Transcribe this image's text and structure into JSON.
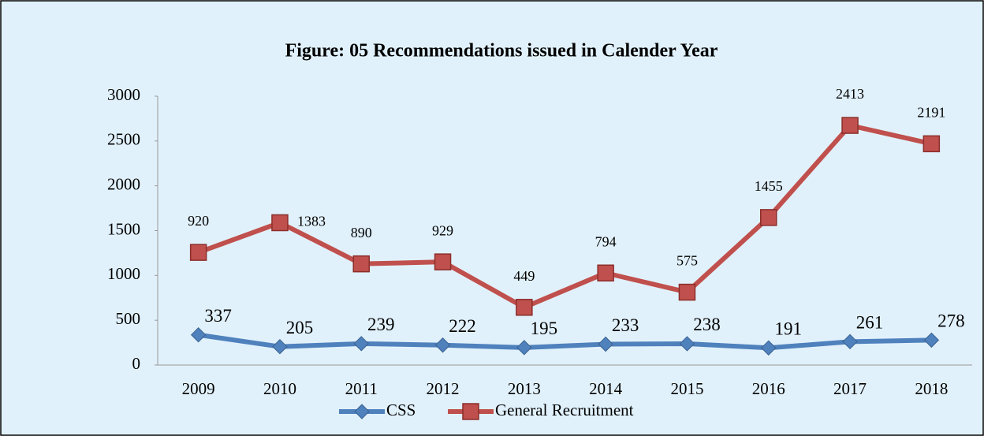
{
  "chart_data": {
    "type": "line",
    "stacked": true,
    "title": "Figure: 05 Recommendations issued in Calender Year",
    "categories": [
      "2009",
      "2010",
      "2011",
      "2012",
      "2013",
      "2014",
      "2015",
      "2016",
      "2017",
      "2018"
    ],
    "series": [
      {
        "name": "CSS",
        "color": "#4f81bd",
        "marker": "diamond",
        "values": [
          337,
          205,
          239,
          222,
          195,
          233,
          238,
          191,
          261,
          278
        ]
      },
      {
        "name": "General Recruitment",
        "color": "#c0504d",
        "marker": "square",
        "values": [
          920,
          1383,
          890,
          929,
          449,
          794,
          575,
          1455,
          2413,
          2191
        ]
      }
    ],
    "ylim": [
      0,
      3000
    ],
    "yticks": [
      0,
      500,
      1000,
      1500,
      2000,
      2500,
      3000
    ],
    "legend": "bottom"
  }
}
